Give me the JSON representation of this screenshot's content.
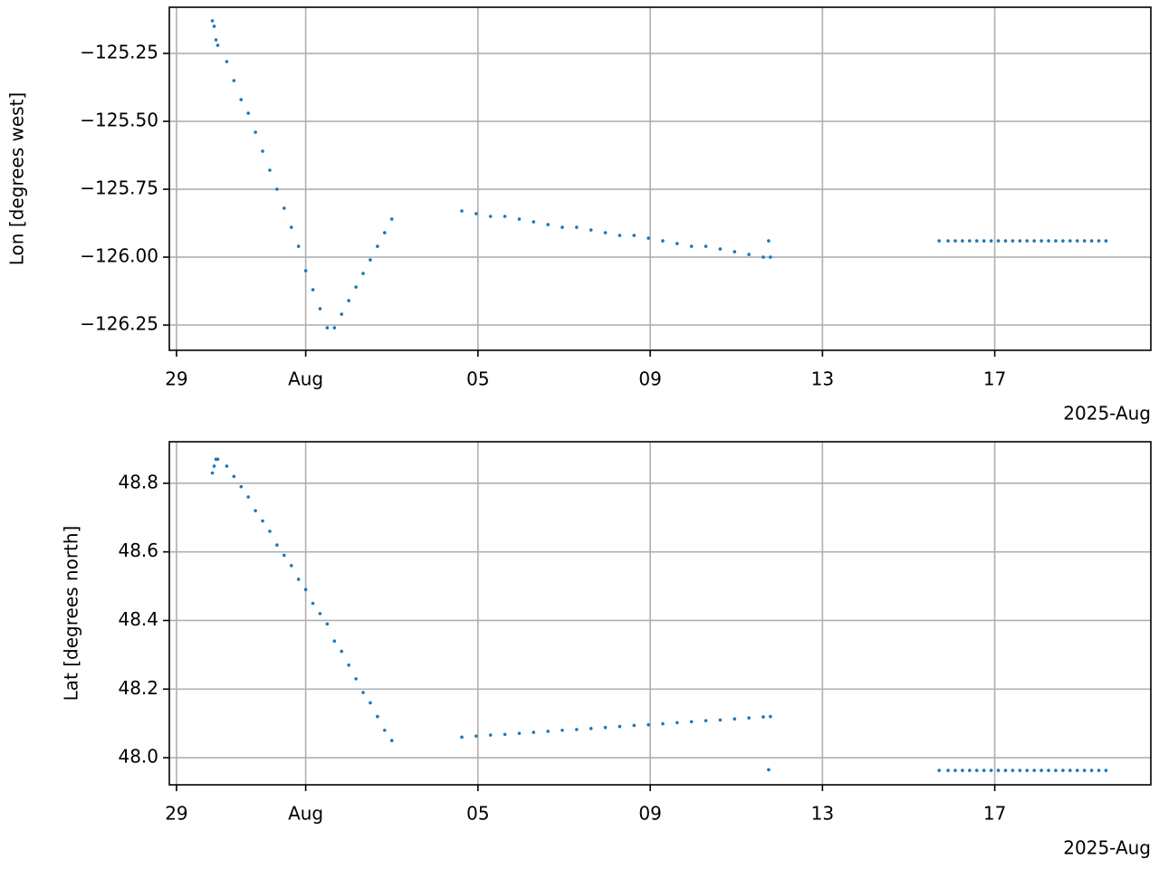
{
  "chart_data": [
    {
      "type": "scatter",
      "ylabel": "Lon [degrees west]",
      "x_offset_label": "2025-Aug",
      "color": "#1f77b4",
      "grid": true,
      "xlim": [
        "2025-07-28T20:00",
        "2025-08-20T15:00"
      ],
      "xticks": [
        {
          "value": "2025-07-29T00:00",
          "label": "29"
        },
        {
          "value": "2025-08-01T00:00",
          "label": "Aug"
        },
        {
          "value": "2025-08-05T00:00",
          "label": "05"
        },
        {
          "value": "2025-08-09T00:00",
          "label": "09"
        },
        {
          "value": "2025-08-13T00:00",
          "label": "13"
        },
        {
          "value": "2025-08-17T00:00",
          "label": "17"
        }
      ],
      "ylim": [
        -126.343,
        -125.08
      ],
      "yticks": [
        {
          "value": -126.25,
          "label": "−126.25"
        },
        {
          "value": -126.0,
          "label": "−126.00"
        },
        {
          "value": -125.75,
          "label": "−125.75"
        },
        {
          "value": -125.5,
          "label": "−125.50"
        },
        {
          "value": -125.25,
          "label": "−125.25"
        }
      ],
      "x": [
        "2025-07-29T20:00",
        "2025-07-29T21:00",
        "2025-07-29T22:00",
        "2025-07-29T23:00",
        "2025-07-30T04:00",
        "2025-07-30T08:00",
        "2025-07-30T12:00",
        "2025-07-30T16:00",
        "2025-07-30T20:00",
        "2025-07-31T00:00",
        "2025-07-31T04:00",
        "2025-07-31T08:00",
        "2025-07-31T12:00",
        "2025-07-31T16:00",
        "2025-07-31T20:00",
        "2025-08-01T00:00",
        "2025-08-01T04:00",
        "2025-08-01T08:00",
        "2025-08-01T12:00",
        "2025-08-01T16:00",
        "2025-08-01T20:00",
        "2025-08-02T00:00",
        "2025-08-02T04:00",
        "2025-08-02T08:00",
        "2025-08-02T12:00",
        "2025-08-02T16:00",
        "2025-08-02T20:00",
        "2025-08-03T00:00",
        "2025-08-04T15:00",
        "2025-08-04T23:00",
        "2025-08-05T07:00",
        "2025-08-05T15:00",
        "2025-08-05T23:00",
        "2025-08-06T07:00",
        "2025-08-06T15:00",
        "2025-08-06T23:00",
        "2025-08-07T07:00",
        "2025-08-07T15:00",
        "2025-08-07T23:00",
        "2025-08-08T07:00",
        "2025-08-08T15:00",
        "2025-08-08T23:00",
        "2025-08-09T07:00",
        "2025-08-09T15:00",
        "2025-08-09T23:00",
        "2025-08-10T07:00",
        "2025-08-10T15:00",
        "2025-08-10T23:00",
        "2025-08-11T07:00",
        "2025-08-11T15:00",
        "2025-08-11T18:00",
        "2025-08-11T19:00",
        "2025-08-15T17:00",
        "2025-08-15T22:00",
        "2025-08-16T02:00",
        "2025-08-16T06:00",
        "2025-08-16T10:00",
        "2025-08-16T14:00",
        "2025-08-16T18:00",
        "2025-08-16T22:00",
        "2025-08-17T02:00",
        "2025-08-17T06:00",
        "2025-08-17T10:00",
        "2025-08-17T14:00",
        "2025-08-17T18:00",
        "2025-08-17T22:00",
        "2025-08-18T02:00",
        "2025-08-18T06:00",
        "2025-08-18T10:00",
        "2025-08-18T14:00",
        "2025-08-18T18:00",
        "2025-08-18T22:00",
        "2025-08-19T02:00",
        "2025-08-19T06:00",
        "2025-08-19T10:00",
        "2025-08-19T14:00"
      ],
      "values": [
        -125.13,
        -125.15,
        -125.2,
        -125.22,
        -125.28,
        -125.35,
        -125.42,
        -125.47,
        -125.54,
        -125.61,
        -125.68,
        -125.75,
        -125.82,
        -125.89,
        -125.96,
        -126.05,
        -126.12,
        -126.19,
        -126.26,
        -126.26,
        -126.21,
        -126.16,
        -126.11,
        -126.06,
        -126.01,
        -125.96,
        -125.91,
        -125.86,
        -125.83,
        -125.84,
        -125.85,
        -125.85,
        -125.86,
        -125.87,
        -125.88,
        -125.89,
        -125.89,
        -125.9,
        -125.91,
        -125.92,
        -125.92,
        -125.93,
        -125.94,
        -125.95,
        -125.96,
        -125.96,
        -125.97,
        -125.98,
        -125.99,
        -126.0,
        -125.94,
        -126.0,
        -125.94,
        -125.94,
        -125.94,
        -125.94,
        -125.94,
        -125.94,
        -125.94,
        -125.94,
        -125.94,
        -125.94,
        -125.94,
        -125.94,
        -125.94,
        -125.94,
        -125.94,
        -125.94,
        -125.94,
        -125.94,
        -125.94,
        -125.94,
        -125.94,
        -125.94,
        -125.94,
        -125.94
      ]
    },
    {
      "type": "scatter",
      "ylabel": "Lat [degrees north]",
      "x_offset_label": "2025-Aug",
      "color": "#1f77b4",
      "grid": true,
      "xlim": [
        "2025-07-28T20:00",
        "2025-08-20T15:00"
      ],
      "xticks": [
        {
          "value": "2025-07-29T00:00",
          "label": "29"
        },
        {
          "value": "2025-08-01T00:00",
          "label": "Aug"
        },
        {
          "value": "2025-08-05T00:00",
          "label": "05"
        },
        {
          "value": "2025-08-09T00:00",
          "label": "09"
        },
        {
          "value": "2025-08-13T00:00",
          "label": "13"
        },
        {
          "value": "2025-08-17T00:00",
          "label": "17"
        }
      ],
      "ylim": [
        47.921,
        48.921
      ],
      "yticks": [
        {
          "value": 48.0,
          "label": "48.0"
        },
        {
          "value": 48.2,
          "label": "48.2"
        },
        {
          "value": 48.4,
          "label": "48.4"
        },
        {
          "value": 48.6,
          "label": "48.6"
        },
        {
          "value": 48.8,
          "label": "48.8"
        }
      ],
      "x": [
        "2025-07-29T20:00",
        "2025-07-29T21:00",
        "2025-07-29T22:00",
        "2025-07-29T23:00",
        "2025-07-30T04:00",
        "2025-07-30T08:00",
        "2025-07-30T12:00",
        "2025-07-30T16:00",
        "2025-07-30T20:00",
        "2025-07-31T00:00",
        "2025-07-31T04:00",
        "2025-07-31T08:00",
        "2025-07-31T12:00",
        "2025-07-31T16:00",
        "2025-07-31T20:00",
        "2025-08-01T00:00",
        "2025-08-01T04:00",
        "2025-08-01T08:00",
        "2025-08-01T12:00",
        "2025-08-01T16:00",
        "2025-08-01T20:00",
        "2025-08-02T00:00",
        "2025-08-02T04:00",
        "2025-08-02T08:00",
        "2025-08-02T12:00",
        "2025-08-02T16:00",
        "2025-08-02T20:00",
        "2025-08-03T00:00",
        "2025-08-04T15:00",
        "2025-08-04T23:00",
        "2025-08-05T07:00",
        "2025-08-05T15:00",
        "2025-08-05T23:00",
        "2025-08-06T07:00",
        "2025-08-06T15:00",
        "2025-08-06T23:00",
        "2025-08-07T07:00",
        "2025-08-07T15:00",
        "2025-08-07T23:00",
        "2025-08-08T07:00",
        "2025-08-08T15:00",
        "2025-08-08T23:00",
        "2025-08-09T07:00",
        "2025-08-09T15:00",
        "2025-08-09T23:00",
        "2025-08-10T07:00",
        "2025-08-10T15:00",
        "2025-08-10T23:00",
        "2025-08-11T07:00",
        "2025-08-11T15:00",
        "2025-08-11T18:00",
        "2025-08-11T19:00",
        "2025-08-15T17:00",
        "2025-08-15T22:00",
        "2025-08-16T02:00",
        "2025-08-16T06:00",
        "2025-08-16T10:00",
        "2025-08-16T14:00",
        "2025-08-16T18:00",
        "2025-08-16T22:00",
        "2025-08-17T02:00",
        "2025-08-17T06:00",
        "2025-08-17T10:00",
        "2025-08-17T14:00",
        "2025-08-17T18:00",
        "2025-08-17T22:00",
        "2025-08-18T02:00",
        "2025-08-18T06:00",
        "2025-08-18T10:00",
        "2025-08-18T14:00",
        "2025-08-18T18:00",
        "2025-08-18T22:00",
        "2025-08-19T02:00",
        "2025-08-19T06:00",
        "2025-08-19T10:00",
        "2025-08-19T14:00"
      ],
      "values": [
        48.83,
        48.85,
        48.87,
        48.87,
        48.85,
        48.82,
        48.79,
        48.76,
        48.72,
        48.69,
        48.66,
        48.62,
        48.59,
        48.56,
        48.52,
        48.49,
        48.45,
        48.42,
        48.39,
        48.34,
        48.31,
        48.27,
        48.23,
        48.19,
        48.16,
        48.12,
        48.08,
        48.05,
        48.06,
        48.063,
        48.066,
        48.068,
        48.071,
        48.074,
        48.077,
        48.08,
        48.082,
        48.085,
        48.088,
        48.091,
        48.094,
        48.096,
        48.099,
        48.102,
        48.105,
        48.108,
        48.11,
        48.113,
        48.116,
        48.119,
        47.965,
        48.12,
        47.963,
        47.963,
        47.963,
        47.963,
        47.963,
        47.963,
        47.963,
        47.963,
        47.963,
        47.963,
        47.963,
        47.963,
        47.963,
        47.963,
        47.963,
        47.963,
        47.963,
        47.963,
        47.963,
        47.963,
        47.963,
        47.963,
        47.963,
        47.963
      ]
    }
  ]
}
